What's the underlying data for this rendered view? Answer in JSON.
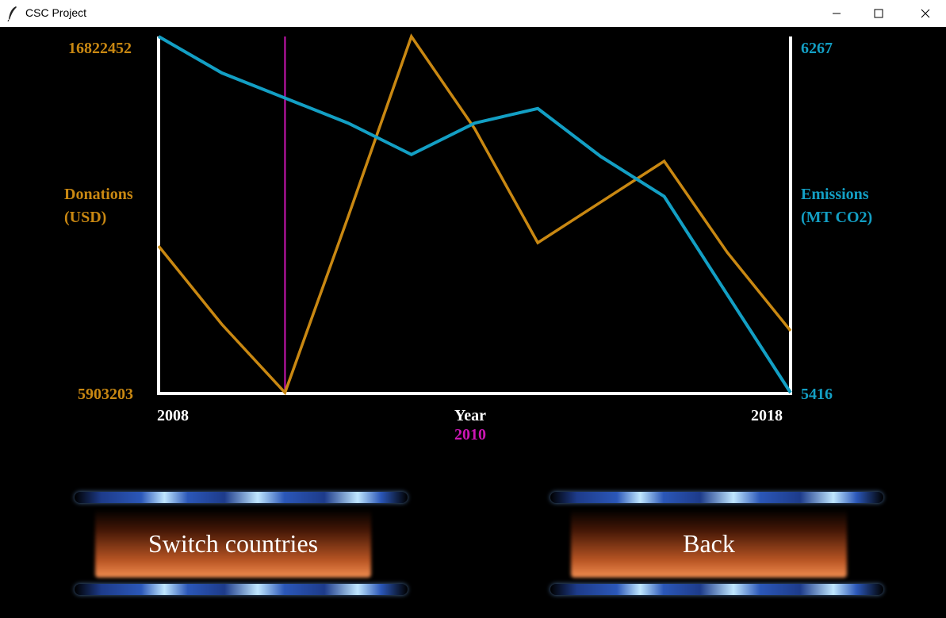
{
  "window": {
    "title": "CSC Project"
  },
  "colors": {
    "donations": "#c98812",
    "emissions": "#139fc4",
    "axis": "#ffffff",
    "marker": "#cc16b4",
    "background": "#000000"
  },
  "chart_data": {
    "type": "line",
    "x": [
      2008,
      2009,
      2010,
      2011,
      2012,
      2013,
      2014,
      2015,
      2016,
      2017,
      2018
    ],
    "series": [
      {
        "name": "Donations (USD)",
        "axis": "left",
        "values": [
          10400000,
          8000000,
          5903203,
          11300000,
          16822452,
          14000000,
          10500000,
          11750000,
          13000000,
          10200000,
          7800000
        ]
      },
      {
        "name": "Emissions (MT CO2)",
        "axis": "right",
        "values": [
          6267,
          6180,
          6120,
          6060,
          5985,
          6060,
          6095,
          5980,
          5885,
          5650,
          5416
        ]
      }
    ],
    "xlabel": "Year",
    "xlim": [
      2008,
      2018
    ],
    "ylabel_left": [
      "Donations",
      "(USD)"
    ],
    "ylim_left": [
      5903203,
      16822452
    ],
    "ylabel_right": [
      "Emissions",
      "(MT CO2)"
    ],
    "ylim_right": [
      5416,
      6267
    ],
    "tick_labels": {
      "left_top": "16822452",
      "left_bottom": "5903203",
      "right_top": "6267",
      "right_bottom": "5416",
      "x_start": "2008",
      "x_end": "2018"
    },
    "selected_year": 2010,
    "selected_year_label": "2010",
    "grid": false,
    "legend": "none"
  },
  "buttons": {
    "switch_label": "Switch countries",
    "back_label": "Back"
  }
}
